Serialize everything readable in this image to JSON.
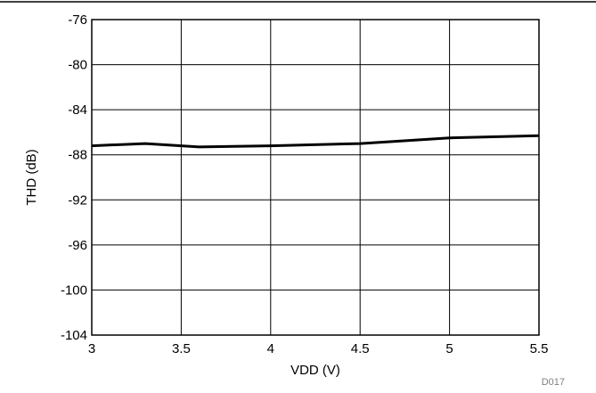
{
  "chart_data": {
    "type": "line",
    "title": "",
    "xlabel": "VDD (V)",
    "ylabel": "THD (dB)",
    "xlim": [
      3,
      5.5
    ],
    "ylim": [
      -104,
      -76
    ],
    "x_ticks": [
      3,
      3.5,
      4,
      4.5,
      5,
      5.5
    ],
    "x_tick_labels": [
      "3",
      "3.5",
      "4",
      "4.5",
      "5",
      "5.5"
    ],
    "y_ticks": [
      -76,
      -80,
      -84,
      -88,
      -92,
      -96,
      -100,
      -104
    ],
    "y_tick_labels": [
      "-76",
      "-80",
      "-84",
      "-88",
      "-92",
      "-96",
      "-100",
      "-104"
    ],
    "grid": true,
    "series": [
      {
        "x": [
          3.0,
          3.3,
          3.6,
          4.0,
          4.5,
          5.0,
          5.5
        ],
        "y": [
          -87.2,
          -87.0,
          -87.3,
          -87.2,
          -87.0,
          -86.5,
          -86.3
        ],
        "color": "#000000"
      }
    ],
    "figure_code": "D017"
  }
}
